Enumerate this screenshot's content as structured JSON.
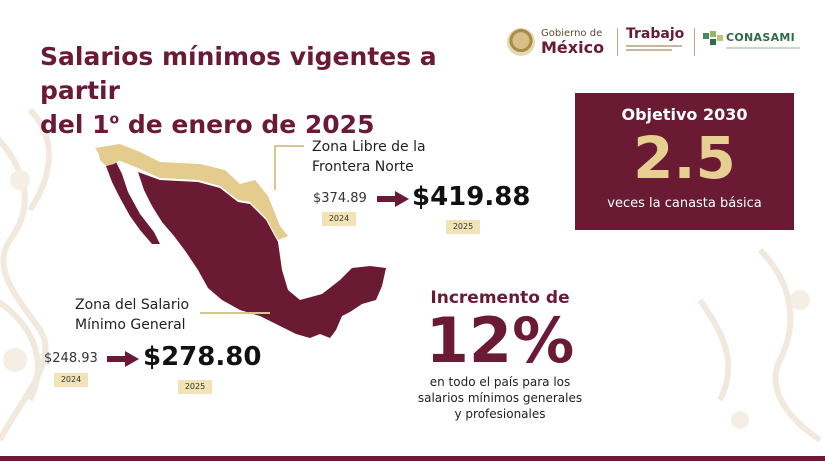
{
  "header": {
    "title_line1": "Salarios mínimos vigentes a partir",
    "title_line2_a": "del 1",
    "title_line2_sup": "o",
    "title_line2_b": " de enero de 2025"
  },
  "logos": {
    "gobierno_small": "Gobierno de",
    "gobierno_big": "México",
    "trabajo": "Trabajo",
    "conasami": "CONASAMI"
  },
  "frontera": {
    "label_line1": "Zona Libre de la",
    "label_line2": "Frontera Norte",
    "old_value": "$374.89",
    "old_year": "2024",
    "new_value": "$419.88",
    "new_year": "2025"
  },
  "general": {
    "label_line1": "Zona del Salario",
    "label_line2": "Mínimo General",
    "old_value": "$248.93",
    "old_year": "2024",
    "new_value": "$278.80",
    "new_year": "2025"
  },
  "objetivo": {
    "title": "Objetivo 2030",
    "value": "2.5",
    "caption": "veces la canasta básica"
  },
  "incremento": {
    "title": "Incremento de",
    "value": "12%",
    "desc_line1": "en todo el país para los",
    "desc_line2": "salarios mínimos generales",
    "desc_line3": "y profesionales"
  },
  "colors": {
    "guinda": "#6b1a33",
    "gold": "#e6cf91",
    "beige": "#f1e3b5",
    "map_frontera": "#e4cc8f"
  }
}
